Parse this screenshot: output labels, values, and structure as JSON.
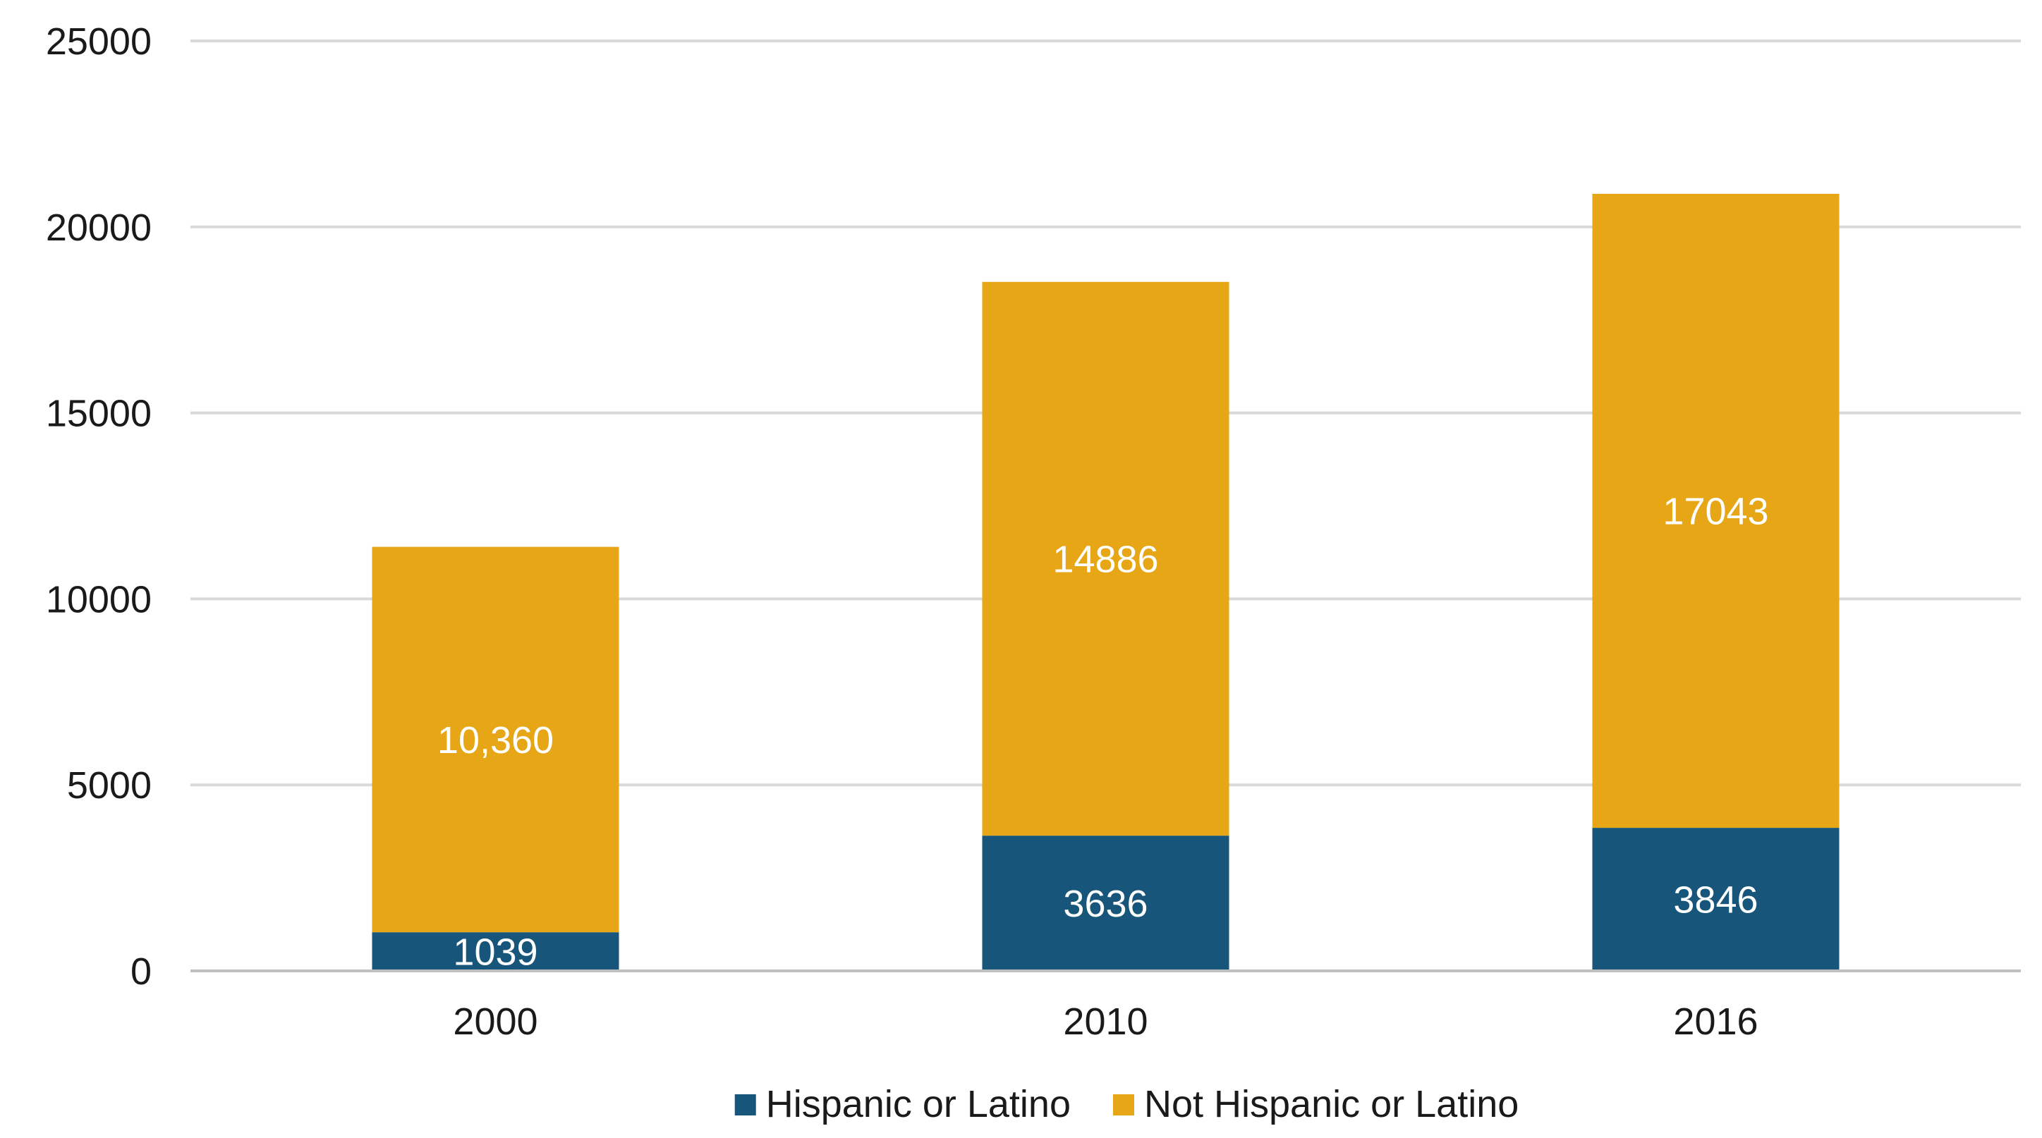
{
  "chart_data": {
    "type": "bar",
    "stacked": true,
    "title": "",
    "xlabel": "",
    "ylabel": "",
    "categories": [
      "2000",
      "2010",
      "2016"
    ],
    "series": [
      {
        "name": "Hispanic or Latino",
        "color": "#17557A",
        "values": [
          1039,
          3636,
          3846
        ],
        "labels": [
          "1039",
          "3636",
          "3846"
        ]
      },
      {
        "name": "Not Hispanic or Latino",
        "color": "#E6A615",
        "values": [
          10360,
          14886,
          17043
        ],
        "labels": [
          "10,360",
          "14886",
          "17043"
        ]
      }
    ],
    "ylim": [
      0,
      25000
    ],
    "yticks": [
      "0",
      "5000",
      "10000",
      "15000",
      "20000",
      "25000"
    ],
    "grid": true,
    "legend": "bottom"
  }
}
